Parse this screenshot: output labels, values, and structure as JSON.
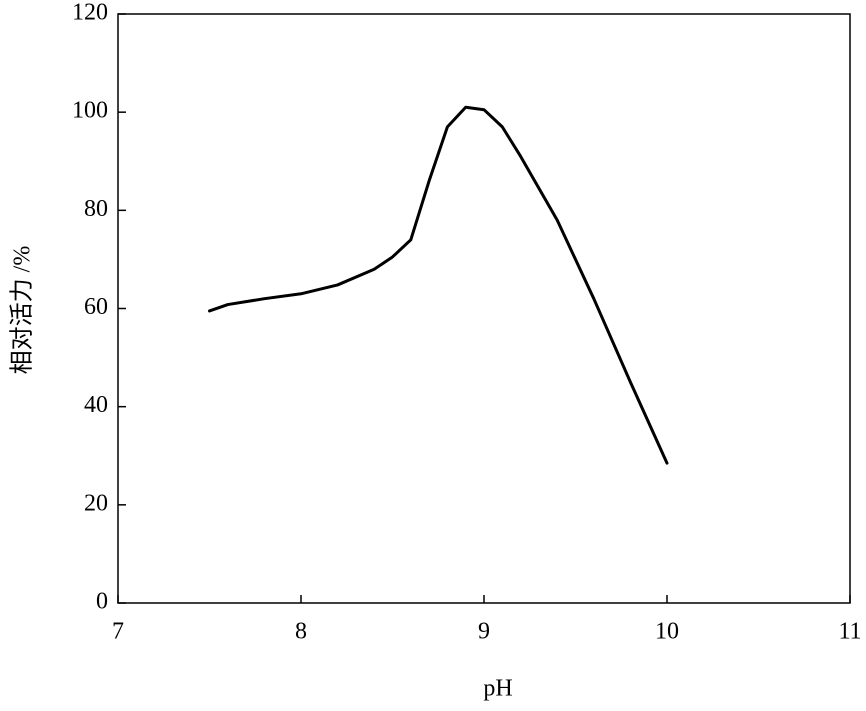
{
  "chart_data": {
    "type": "line",
    "x_label": "pH",
    "y_label": "相对活力 /%",
    "x": [
      7.5,
      7.6,
      7.8,
      8.0,
      8.2,
      8.4,
      8.5,
      8.6,
      8.7,
      8.8,
      8.9,
      9.0,
      9.1,
      9.2,
      9.4,
      9.6,
      9.8,
      10.0
    ],
    "series": [
      {
        "name": "相对活力",
        "color": "#000000",
        "values": [
          59.5,
          60.8,
          62,
          63,
          64.8,
          68,
          70.5,
          74,
          86,
          97,
          101,
          100.5,
          97,
          91,
          78,
          62,
          45,
          28.5
        ]
      }
    ],
    "xlim": [
      7,
      11
    ],
    "xticks": [
      7,
      8,
      9,
      10,
      11
    ],
    "ylim": [
      0,
      120
    ],
    "yticks": [
      0,
      20,
      40,
      60,
      80,
      100,
      120
    ],
    "grid": false
  }
}
